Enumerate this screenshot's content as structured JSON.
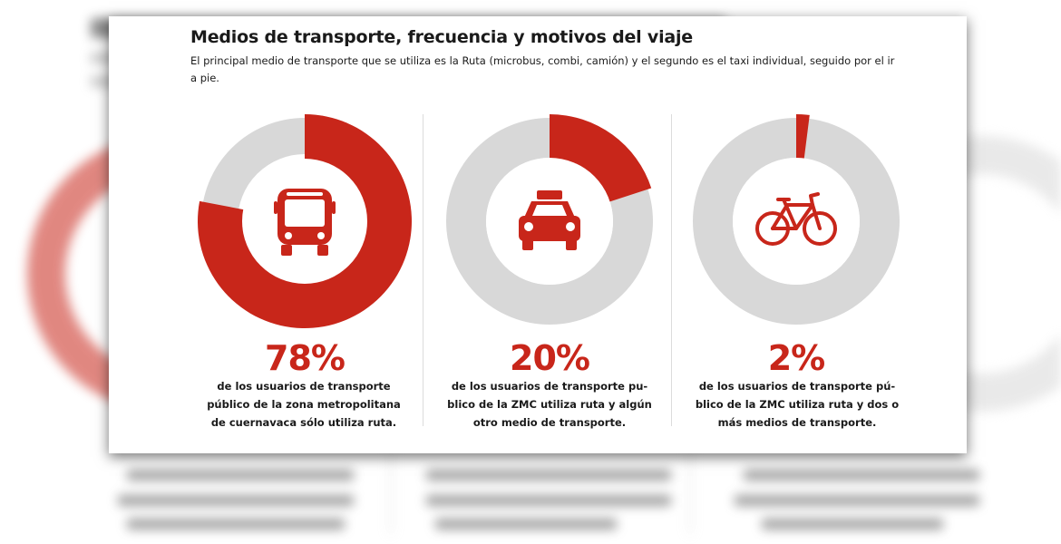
{
  "title": "Medios de transporte, frecuencia y motivos del viaje",
  "subtitle": "El principal medio de transporte que se utiliza es la Ruta (microbus, combi, camión) y el segundo es el taxi individual, seguido por el ir a pie.",
  "colors": {
    "accent": "#c8261a",
    "track": "#d8d8d8",
    "text": "#1a1a1a"
  },
  "chart_data": {
    "type": "pie",
    "title": "Medios de transporte, frecuencia y motivos del viaje",
    "items": [
      {
        "value": 78,
        "label": "78%",
        "icon": "bus-icon",
        "description_lines": [
          "de los usuarios de transporte",
          "público de la zona metropolitana",
          "de cuernavaca sólo utiliza ruta."
        ]
      },
      {
        "value": 20,
        "label": "20%",
        "icon": "taxi-icon",
        "description_lines": [
          "de los usuarios de transporte pu-",
          "blico de la ZMC utiliza ruta y algún",
          "otro medio de transporte."
        ]
      },
      {
        "value": 2,
        "label": "2%",
        "icon": "bicycle-icon",
        "description_lines": [
          "de los usuarios de transporte pú-",
          "blico de la ZMC utiliza ruta y dos o",
          "más medios de transporte."
        ]
      }
    ]
  }
}
